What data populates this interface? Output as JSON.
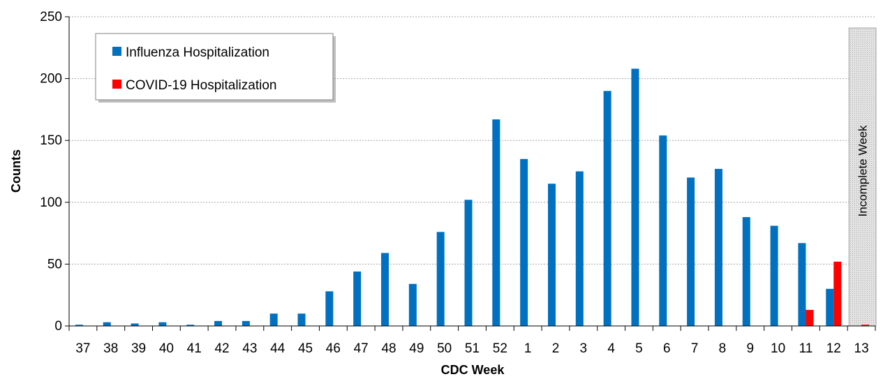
{
  "chart_data": {
    "type": "bar",
    "title": "",
    "xlabel": "CDC Week",
    "ylabel": "Counts",
    "ylim": [
      0,
      250
    ],
    "yticks": [
      0,
      50,
      100,
      150,
      200,
      250
    ],
    "grid": "horizontal dotted",
    "legend_position": "top-left",
    "categories": [
      "37",
      "38",
      "39",
      "40",
      "41",
      "42",
      "43",
      "44",
      "45",
      "46",
      "47",
      "48",
      "49",
      "50",
      "51",
      "52",
      "1",
      "2",
      "3",
      "4",
      "5",
      "6",
      "7",
      "8",
      "9",
      "10",
      "11",
      "12",
      "13"
    ],
    "series": [
      {
        "name": "Influenza Hospitalization",
        "color": "#0070C0",
        "values": [
          1,
          3,
          2,
          3,
          1,
          4,
          4,
          10,
          10,
          28,
          44,
          59,
          34,
          76,
          102,
          167,
          135,
          115,
          125,
          190,
          208,
          154,
          120,
          127,
          88,
          81,
          67,
          30,
          0
        ]
      },
      {
        "name": "COVID-19 Hospitalization",
        "color": "#FF0000",
        "values": [
          0,
          0,
          0,
          0,
          0,
          0,
          0,
          0,
          0,
          0,
          0,
          0,
          0,
          0,
          0,
          0,
          0,
          0,
          0,
          0,
          0,
          0,
          0,
          0,
          0,
          0,
          13,
          52,
          1
        ]
      }
    ],
    "annotation": {
      "text": "Incomplete Week",
      "category": "13"
    }
  }
}
